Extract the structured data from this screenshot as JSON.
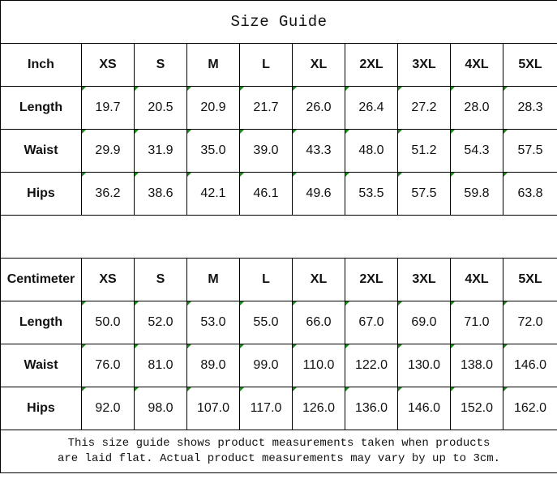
{
  "title": "Size Guide",
  "sizes": [
    "XS",
    "S",
    "M",
    "L",
    "XL",
    "2XL",
    "3XL",
    "4XL",
    "5XL"
  ],
  "error_marker_color": "#1a8a1a",
  "tables": [
    {
      "unit": "Inch",
      "rows": [
        {
          "label": "Length",
          "values": [
            "19.7",
            "20.5",
            "20.9",
            "21.7",
            "26.0",
            "26.4",
            "27.2",
            "28.0",
            "28.3"
          ]
        },
        {
          "label": "Waist",
          "values": [
            "29.9",
            "31.9",
            "35.0",
            "39.0",
            "43.3",
            "48.0",
            "51.2",
            "54.3",
            "57.5"
          ]
        },
        {
          "label": "Hips",
          "values": [
            "36.2",
            "38.6",
            "42.1",
            "46.1",
            "49.6",
            "53.5",
            "57.5",
            "59.8",
            "63.8"
          ]
        }
      ]
    },
    {
      "unit": "Centimeter",
      "rows": [
        {
          "label": "Length",
          "values": [
            "50.0",
            "52.0",
            "53.0",
            "55.0",
            "66.0",
            "67.0",
            "69.0",
            "71.0",
            "72.0"
          ]
        },
        {
          "label": "Waist",
          "values": [
            "76.0",
            "81.0",
            "89.0",
            "99.0",
            "110.0",
            "122.0",
            "130.0",
            "138.0",
            "146.0"
          ]
        },
        {
          "label": "Hips",
          "values": [
            "92.0",
            "98.0",
            "107.0",
            "117.0",
            "126.0",
            "136.0",
            "146.0",
            "152.0",
            "162.0"
          ]
        }
      ]
    }
  ],
  "note_line1": "This size guide shows product measurements taken when products",
  "note_line2": "are laid flat. Actual product measurements may vary by up to 3cm."
}
